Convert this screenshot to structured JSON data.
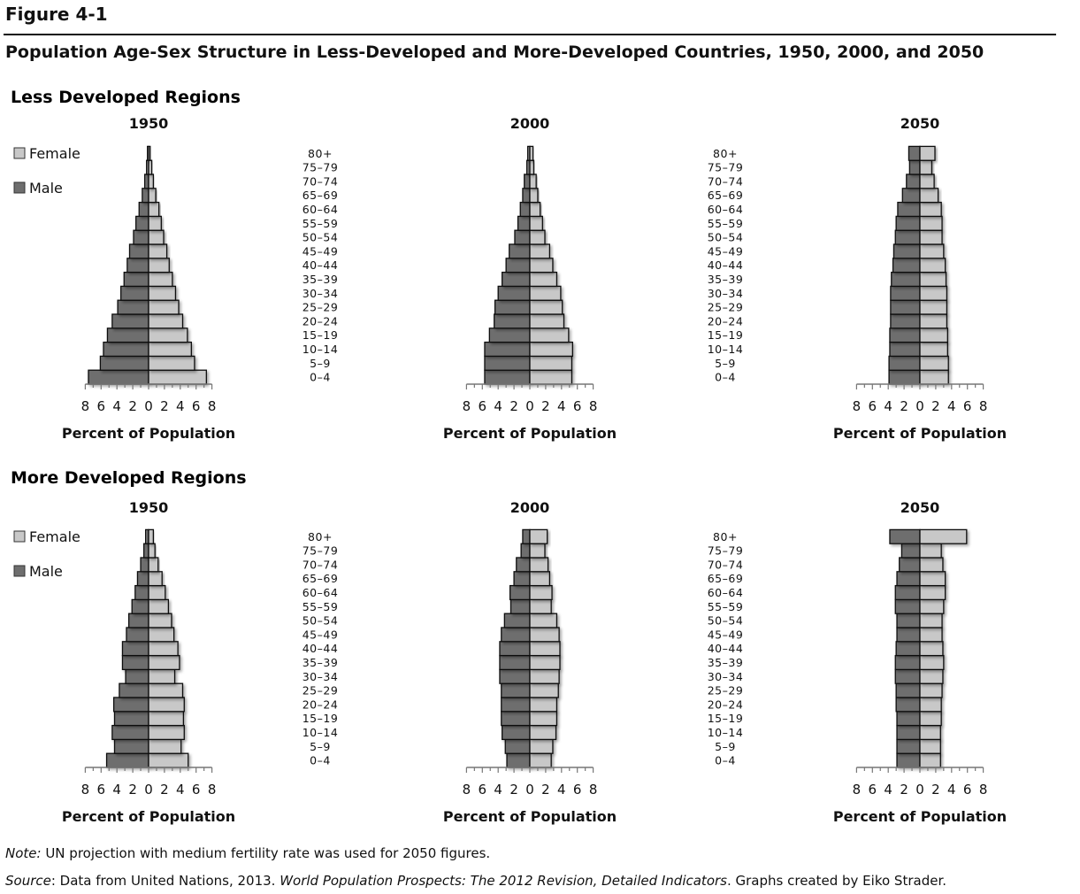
{
  "figure": {
    "label": "Figure 4-1",
    "title": "Population Age-Sex Structure in Less-Developed and More-Developed Countries, 1950, 2000, and 2050"
  },
  "legend": {
    "female": "Female",
    "male": "Male"
  },
  "colors": {
    "female": "#c8c8c8",
    "male": "#6e6e6e",
    "stroke": "#111111",
    "axis": "#777777"
  },
  "footer": {
    "note_prefix": "Note:",
    "note_text": " UN projection with medium fertility rate was used for 2050 figures.",
    "source_prefix": "Source",
    "source_text1": ": Data from United Nations, 2013. ",
    "source_italic": "World Population Prospects: The 2012 Revision, Detailed Indicators",
    "source_text2": ". Graphs created by Eiko Strader."
  },
  "regions": [
    "Less Developed Regions",
    "More Developed Regions"
  ],
  "age_groups": [
    "0–4",
    "5–9",
    "10–14",
    "15–19",
    "20–24",
    "25–29",
    "30–34",
    "35–39",
    "40–44",
    "45–49",
    "50–54",
    "55–59",
    "60–64",
    "65–69",
    "70–74",
    "75–79",
    "80+"
  ],
  "chart_data": [
    {
      "type": "bar",
      "region": "Less Developed Regions",
      "title": "1950",
      "xlabel": "Percent of Population",
      "xlim": [
        -8,
        8
      ],
      "ticks": [
        8,
        6,
        4,
        2,
        0,
        2,
        4,
        6,
        8
      ],
      "male": [
        7.6,
        6.1,
        5.7,
        5.2,
        4.6,
        3.9,
        3.5,
        3.1,
        2.7,
        2.4,
        1.9,
        1.6,
        1.2,
        0.8,
        0.5,
        0.3,
        0.2
      ],
      "female": [
        7.3,
        5.8,
        5.4,
        4.9,
        4.3,
        3.8,
        3.4,
        3.0,
        2.6,
        2.3,
        1.9,
        1.6,
        1.3,
        0.9,
        0.6,
        0.4,
        0.2
      ]
    },
    {
      "type": "bar",
      "region": "Less Developed Regions",
      "title": "2000",
      "xlabel": "Percent of Population",
      "xlim": [
        -8,
        8
      ],
      "ticks": [
        8,
        6,
        4,
        2,
        0,
        2,
        4,
        6,
        8
      ],
      "male": [
        5.7,
        5.7,
        5.7,
        5.1,
        4.5,
        4.4,
        4.0,
        3.5,
        3.0,
        2.6,
        1.9,
        1.5,
        1.2,
        0.9,
        0.7,
        0.4,
        0.3
      ],
      "female": [
        5.3,
        5.3,
        5.4,
        4.9,
        4.3,
        4.1,
        3.9,
        3.4,
        2.9,
        2.5,
        1.9,
        1.6,
        1.3,
        1.0,
        0.8,
        0.5,
        0.4
      ]
    },
    {
      "type": "bar",
      "region": "Less Developed Regions",
      "title": "2050",
      "xlabel": "Percent of Population",
      "xlim": [
        -8,
        8
      ],
      "ticks": [
        8,
        6,
        4,
        2,
        0,
        2,
        4,
        6,
        8
      ],
      "male": [
        3.9,
        3.9,
        3.8,
        3.8,
        3.7,
        3.7,
        3.7,
        3.6,
        3.4,
        3.3,
        3.1,
        3.0,
        2.8,
        2.2,
        1.7,
        1.3,
        1.4
      ],
      "female": [
        3.6,
        3.6,
        3.5,
        3.5,
        3.4,
        3.4,
        3.4,
        3.3,
        3.2,
        3.0,
        2.8,
        2.8,
        2.7,
        2.3,
        1.8,
        1.5,
        1.9
      ]
    },
    {
      "type": "bar",
      "region": "More Developed Regions",
      "title": "1950",
      "xlabel": "Percent of Population",
      "xlim": [
        -8,
        8
      ],
      "ticks": [
        8,
        6,
        4,
        2,
        0,
        2,
        4,
        6,
        8
      ],
      "male": [
        5.3,
        4.3,
        4.6,
        4.3,
        4.4,
        3.7,
        2.9,
        3.3,
        3.3,
        2.8,
        2.5,
        2.1,
        1.7,
        1.4,
        1.0,
        0.6,
        0.4
      ],
      "female": [
        5.0,
        4.1,
        4.5,
        4.4,
        4.5,
        4.3,
        3.3,
        3.9,
        3.7,
        3.2,
        2.9,
        2.5,
        2.1,
        1.7,
        1.2,
        0.8,
        0.6
      ]
    },
    {
      "type": "bar",
      "region": "More Developed Regions",
      "title": "2000",
      "xlabel": "Percent of Population",
      "xlim": [
        -8,
        8
      ],
      "ticks": [
        8,
        6,
        4,
        2,
        0,
        2,
        4,
        6,
        8
      ],
      "male": [
        2.9,
        3.1,
        3.5,
        3.6,
        3.6,
        3.6,
        3.8,
        3.8,
        3.8,
        3.6,
        3.2,
        2.4,
        2.5,
        2.0,
        1.7,
        1.1,
        0.9
      ],
      "female": [
        2.7,
        2.9,
        3.3,
        3.4,
        3.4,
        3.6,
        3.7,
        3.8,
        3.8,
        3.7,
        3.4,
        2.7,
        2.8,
        2.5,
        2.3,
        1.9,
        2.2
      ]
    },
    {
      "type": "bar",
      "region": "More Developed Regions",
      "title": "2050",
      "xlabel": "Percent of Population",
      "xlim": [
        -8,
        8
      ],
      "ticks": [
        8,
        6,
        4,
        2,
        0,
        2,
        4,
        6,
        8
      ],
      "male": [
        2.9,
        2.9,
        2.9,
        2.9,
        3.0,
        3.0,
        3.1,
        3.1,
        3.0,
        2.9,
        2.9,
        3.1,
        3.1,
        2.9,
        2.6,
        2.3,
        3.8
      ],
      "female": [
        2.6,
        2.6,
        2.6,
        2.7,
        2.7,
        2.8,
        2.9,
        3.0,
        2.9,
        2.8,
        2.8,
        3.0,
        3.2,
        3.2,
        2.9,
        2.7,
        5.9
      ]
    }
  ]
}
